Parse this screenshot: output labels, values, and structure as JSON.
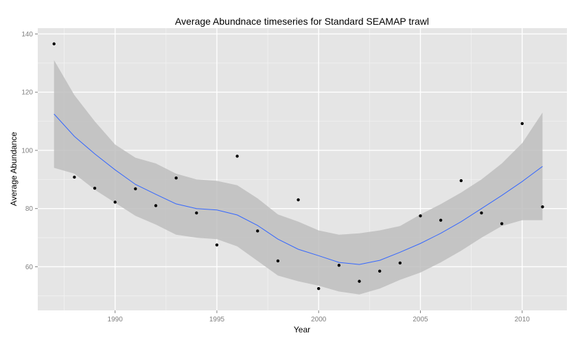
{
  "chart_data": {
    "type": "scatter",
    "title": "Average Abundnace timeseries for Standard SEAMAP trawl",
    "xlabel": "Year",
    "ylabel": "Average Abundance",
    "xlim": [
      1986.2,
      2012.2
    ],
    "ylim": [
      45,
      142
    ],
    "x_ticks": [
      1990,
      1995,
      2000,
      2005,
      2010
    ],
    "y_ticks": [
      60,
      80,
      100,
      120,
      140
    ],
    "x_tick_labels": [
      "1990",
      "1995",
      "2000",
      "2005",
      "2010"
    ],
    "y_tick_labels": [
      "60",
      "80",
      "100",
      "120",
      "140"
    ],
    "grid": true,
    "series": [
      {
        "kind": "points",
        "x": [
          1987,
          1988,
          1989,
          1990,
          1991,
          1992,
          1993,
          1994,
          1995,
          1996,
          1997,
          1998,
          1999,
          2000,
          2001,
          2002,
          2003,
          2004,
          2005,
          2006,
          2007,
          2008,
          2009,
          2010,
          2011
        ],
        "y": [
          136.6,
          90.8,
          87.0,
          82.2,
          86.8,
          81.0,
          90.5,
          78.5,
          67.5,
          98.0,
          72.3,
          62.0,
          83.0,
          52.5,
          60.5,
          55.0,
          58.5,
          61.3,
          77.5,
          76.0,
          89.6,
          78.5,
          74.8,
          109.2,
          80.6
        ]
      },
      {
        "kind": "smooth",
        "x": [
          1987,
          1988,
          1989,
          1990,
          1991,
          1992,
          1993,
          1994,
          1995,
          1996,
          1997,
          1998,
          1999,
          2000,
          2001,
          2002,
          2003,
          2004,
          2005,
          2006,
          2007,
          2008,
          2009,
          2010,
          2011
        ],
        "y": [
          112.5,
          104.8,
          98.8,
          93.3,
          88.3,
          84.9,
          81.6,
          80.0,
          79.5,
          77.8,
          74.2,
          69.5,
          66.0,
          63.8,
          61.5,
          60.8,
          62.2,
          65.0,
          68.0,
          71.5,
          75.5,
          80.0,
          84.5,
          89.3,
          94.5
        ],
        "lower": [
          94.0,
          92.0,
          86.5,
          82.0,
          77.5,
          74.5,
          71.0,
          70.0,
          69.5,
          67.0,
          62.0,
          57.0,
          55.0,
          53.5,
          51.5,
          50.5,
          52.5,
          55.5,
          58.0,
          61.5,
          65.5,
          70.0,
          74.0,
          76.0,
          76.0
        ],
        "upper": [
          131.0,
          119.0,
          110.0,
          102.0,
          97.5,
          95.5,
          92.0,
          90.0,
          89.5,
          88.0,
          83.5,
          78.0,
          75.5,
          72.5,
          71.0,
          71.5,
          72.5,
          74.0,
          78.0,
          81.5,
          85.5,
          90.0,
          95.5,
          102.5,
          113.0
        ]
      }
    ],
    "colors": {
      "panel": "#e5e5e5",
      "grid_major": "#ffffff",
      "grid_minor": "#f2f2f2",
      "ribbon": "#bebebe",
      "line": "#3366ff",
      "point": "#000000"
    }
  }
}
